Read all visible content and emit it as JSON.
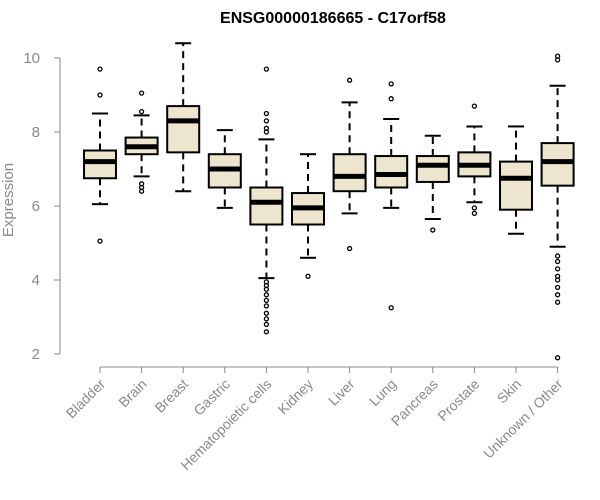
{
  "chart_data": {
    "type": "boxplot",
    "title": "ENSG00000186665 - C17orf58",
    "xlabel": "",
    "ylabel": "Expression",
    "ylim": [
      1.8,
      10.5
    ],
    "yticks": [
      2,
      4,
      6,
      8,
      10
    ],
    "colors": {
      "box_fill": "#ede5cd",
      "box_stroke": "#000000",
      "median": "#000000",
      "axis": "#8a8a8a"
    },
    "categories": [
      "Bladder",
      "Brain",
      "Breast",
      "Gastric",
      "Hematopoietic cells",
      "Kidney",
      "Liver",
      "Lung",
      "Pancreas",
      "Prostate",
      "Skin",
      "Unknown / Other"
    ],
    "boxes": [
      {
        "name": "Bladder",
        "whisker_low": 6.05,
        "q1": 6.75,
        "median": 7.2,
        "q3": 7.5,
        "whisker_high": 8.5,
        "outliers": [
          5.05,
          9.0,
          9.7
        ]
      },
      {
        "name": "Brain",
        "whisker_low": 6.8,
        "q1": 7.4,
        "median": 7.6,
        "q3": 7.85,
        "whisker_high": 8.45,
        "outliers": [
          6.4,
          6.5,
          6.6,
          8.55,
          9.05
        ]
      },
      {
        "name": "Breast",
        "whisker_low": 6.4,
        "q1": 7.45,
        "median": 8.3,
        "q3": 8.7,
        "whisker_high": 10.4,
        "outliers": []
      },
      {
        "name": "Gastric",
        "whisker_low": 5.95,
        "q1": 6.5,
        "median": 7.0,
        "q3": 7.4,
        "whisker_high": 8.05,
        "outliers": []
      },
      {
        "name": "Hematopoietic cells",
        "whisker_low": 4.05,
        "q1": 5.5,
        "median": 6.1,
        "q3": 6.5,
        "whisker_high": 7.8,
        "outliers": [
          2.6,
          2.8,
          2.95,
          3.1,
          3.3,
          3.45,
          3.6,
          3.75,
          3.85,
          3.95,
          8.0,
          8.1,
          8.3,
          8.5,
          9.7
        ]
      },
      {
        "name": "Kidney",
        "whisker_low": 4.6,
        "q1": 5.5,
        "median": 5.95,
        "q3": 6.35,
        "whisker_high": 7.4,
        "outliers": [
          4.1
        ]
      },
      {
        "name": "Liver",
        "whisker_low": 5.8,
        "q1": 6.4,
        "median": 6.8,
        "q3": 7.4,
        "whisker_high": 8.8,
        "outliers": [
          4.85,
          9.4
        ]
      },
      {
        "name": "Lung",
        "whisker_low": 5.95,
        "q1": 6.5,
        "median": 6.85,
        "q3": 7.35,
        "whisker_high": 8.35,
        "outliers": [
          3.25,
          8.9,
          9.3
        ]
      },
      {
        "name": "Pancreas",
        "whisker_low": 5.65,
        "q1": 6.65,
        "median": 7.1,
        "q3": 7.35,
        "whisker_high": 7.9,
        "outliers": [
          5.35
        ]
      },
      {
        "name": "Prostate",
        "whisker_low": 6.1,
        "q1": 6.8,
        "median": 7.1,
        "q3": 7.45,
        "whisker_high": 8.15,
        "outliers": [
          5.8,
          5.95,
          8.7
        ]
      },
      {
        "name": "Skin",
        "whisker_low": 5.25,
        "q1": 5.9,
        "median": 6.75,
        "q3": 7.2,
        "whisker_high": 8.15,
        "outliers": []
      },
      {
        "name": "Unknown / Other",
        "whisker_low": 4.9,
        "q1": 6.55,
        "median": 7.2,
        "q3": 7.7,
        "whisker_high": 9.25,
        "outliers": [
          1.9,
          3.4,
          3.6,
          3.8,
          4.0,
          4.1,
          4.3,
          4.5,
          4.65,
          9.95,
          10.05
        ]
      }
    ]
  }
}
